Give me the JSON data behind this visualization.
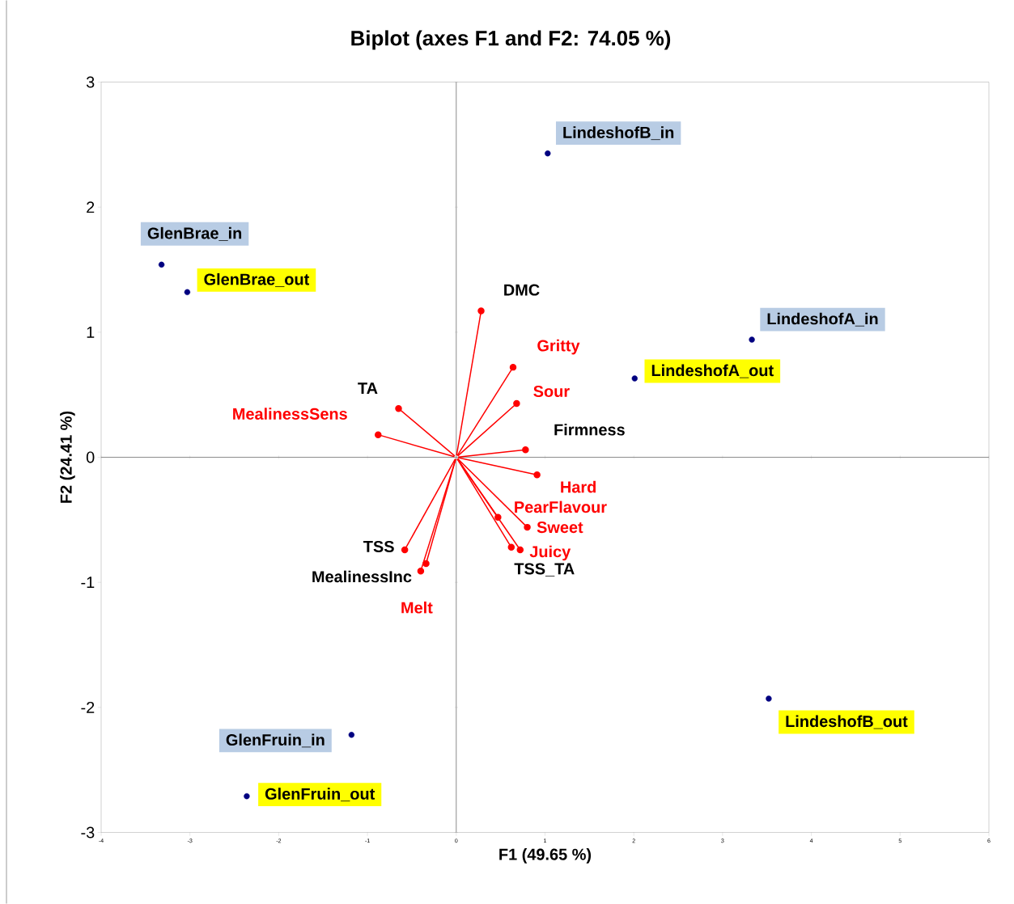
{
  "chart_data": {
    "type": "scatter",
    "title": "Biplot (axes F1 and F2: 74.05 %)",
    "xlabel": "F1 (49.65 %)",
    "ylabel": "F2 (24.41 %)",
    "xlim": [
      -4,
      6
    ],
    "xticks": [
      -4,
      -3,
      -2,
      -1,
      0,
      1,
      2,
      3,
      4,
      5,
      6
    ],
    "ylim": [
      -3,
      3
    ],
    "yticks": [
      -3,
      -2,
      -1,
      0,
      1,
      2,
      3
    ],
    "marker": "circle",
    "series": [
      {
        "type": "scatter",
        "color": "#000080",
        "x": [
          -3.32,
          1.03,
          3.33,
          -1.18
        ],
        "values": [
          1.54,
          2.43,
          0.94,
          -2.22
        ],
        "value_labels": [
          "GlenBrae_in",
          "LindeshofB_in",
          "LindeshofA_in",
          "GlenFruin_in"
        ]
      },
      {
        "type": "scatter",
        "color": "#000080",
        "x": [
          -3.03,
          2.01,
          3.52,
          -2.36
        ],
        "values": [
          1.32,
          0.63,
          -1.93,
          -2.71
        ],
        "value_labels": [
          "GlenBrae_out",
          "LindeshofA_out",
          "LindeshofB_out",
          "GlenFruin_out"
        ]
      },
      {
        "type": "line",
        "color": "#ff0000",
        "x": [
          0,
          0.28
        ],
        "values": [
          0,
          1.17
        ],
        "value_labels": [
          null,
          "DMC"
        ]
      },
      {
        "type": "line",
        "color": "#ff0000",
        "x": [
          0,
          0.64
        ],
        "values": [
          0,
          0.72
        ],
        "value_labels": [
          null,
          "Gritty"
        ]
      },
      {
        "type": "line",
        "color": "#ff0000",
        "x": [
          0,
          0.68
        ],
        "values": [
          0,
          0.43
        ],
        "value_labels": [
          null,
          "Sour"
        ]
      },
      {
        "type": "line",
        "color": "#ff0000",
        "x": [
          0,
          0.78
        ],
        "values": [
          0,
          0.06
        ],
        "value_labels": [
          null,
          "Firmness"
        ]
      },
      {
        "type": "line",
        "color": "#ff0000",
        "x": [
          0,
          0.91
        ],
        "values": [
          0,
          -0.14
        ],
        "value_labels": [
          null,
          "Hard"
        ]
      },
      {
        "type": "line",
        "color": "#ff0000",
        "x": [
          0,
          0.8
        ],
        "values": [
          0,
          -0.56
        ],
        "value_labels": [
          null,
          "Sweet"
        ]
      },
      {
        "type": "line",
        "color": "#ff0000",
        "x": [
          0,
          0.62
        ],
        "values": [
          0,
          -0.72
        ],
        "value_labels": [
          null,
          "TSS_TA"
        ]
      },
      {
        "type": "line",
        "color": "#ff0000",
        "x": [
          0,
          0.72
        ],
        "values": [
          0,
          -0.74
        ],
        "value_labels": [
          null,
          "Juicy"
        ]
      },
      {
        "type": "line",
        "color": "#ff0000",
        "x": [
          0,
          0.47
        ],
        "values": [
          0,
          -0.48
        ],
        "value_labels": [
          null,
          "PearFlavour"
        ]
      },
      {
        "type": "line",
        "color": "#ff0000",
        "x": [
          0,
          -0.58
        ],
        "values": [
          0,
          -0.74
        ],
        "value_labels": [
          null,
          "TSS"
        ]
      },
      {
        "type": "line",
        "color": "#ff0000",
        "x": [
          0,
          -0.34
        ],
        "values": [
          0,
          -0.85
        ],
        "value_labels": [
          null,
          "MealinessInc"
        ]
      },
      {
        "type": "line",
        "color": "#ff0000",
        "x": [
          0,
          -0.4
        ],
        "values": [
          0,
          -0.91
        ],
        "value_labels": [
          null,
          "Melt"
        ]
      },
      {
        "type": "line",
        "color": "#ff0000",
        "x": [
          0,
          -0.65
        ],
        "values": [
          0,
          0.39
        ],
        "value_labels": [
          null,
          "TA"
        ]
      },
      {
        "type": "line",
        "color": "#ff0000",
        "x": [
          0,
          -0.88
        ],
        "values": [
          0,
          0.18
        ],
        "value_labels": [
          null,
          "MealinessSens"
        ]
      }
    ]
  }
}
